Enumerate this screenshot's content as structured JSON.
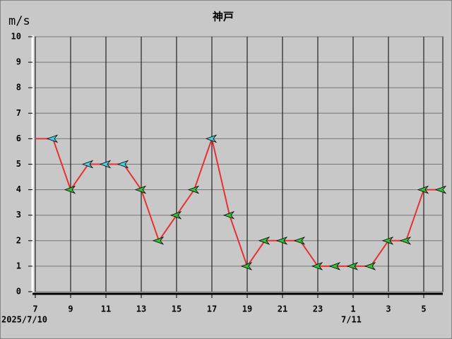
{
  "chart_data": {
    "type": "line",
    "title": "神戸",
    "y_label": "m/s",
    "categories": [
      "7",
      null,
      "9",
      null,
      "11",
      null,
      "13",
      null,
      "15",
      null,
      "17",
      null,
      "19",
      null,
      "21",
      null,
      "23",
      null,
      "1",
      null,
      "3",
      null,
      "5",
      null
    ],
    "date_labels": [
      "2025/7/10",
      "7/11"
    ],
    "series": [
      {
        "color": "#e83030",
        "values": [
          6,
          6,
          4,
          5,
          5,
          5,
          4,
          2,
          3,
          4,
          6,
          3,
          1,
          2,
          2,
          2,
          1,
          1,
          1,
          1,
          2,
          2,
          4,
          4
        ],
        "marker_colors": [
          null,
          "#40d0e0",
          "#30c030",
          "#40d0e0",
          "#40d0e0",
          "#40d0e0",
          "#30c030",
          "#30c030",
          "#30c030",
          "#30c030",
          "#40d0e0",
          "#30c030",
          "#30c030",
          "#30c030",
          "#30c030",
          "#30c030",
          "#30c030",
          "#30c030",
          "#30c030",
          "#30c030",
          "#30c030",
          "#30c030",
          "#30c030",
          "#30c030"
        ]
      }
    ],
    "ylim": [
      0,
      10
    ],
    "yticks": [
      0,
      1,
      2,
      3,
      4,
      5,
      6,
      7,
      8,
      9,
      10
    ],
    "grid": true
  }
}
